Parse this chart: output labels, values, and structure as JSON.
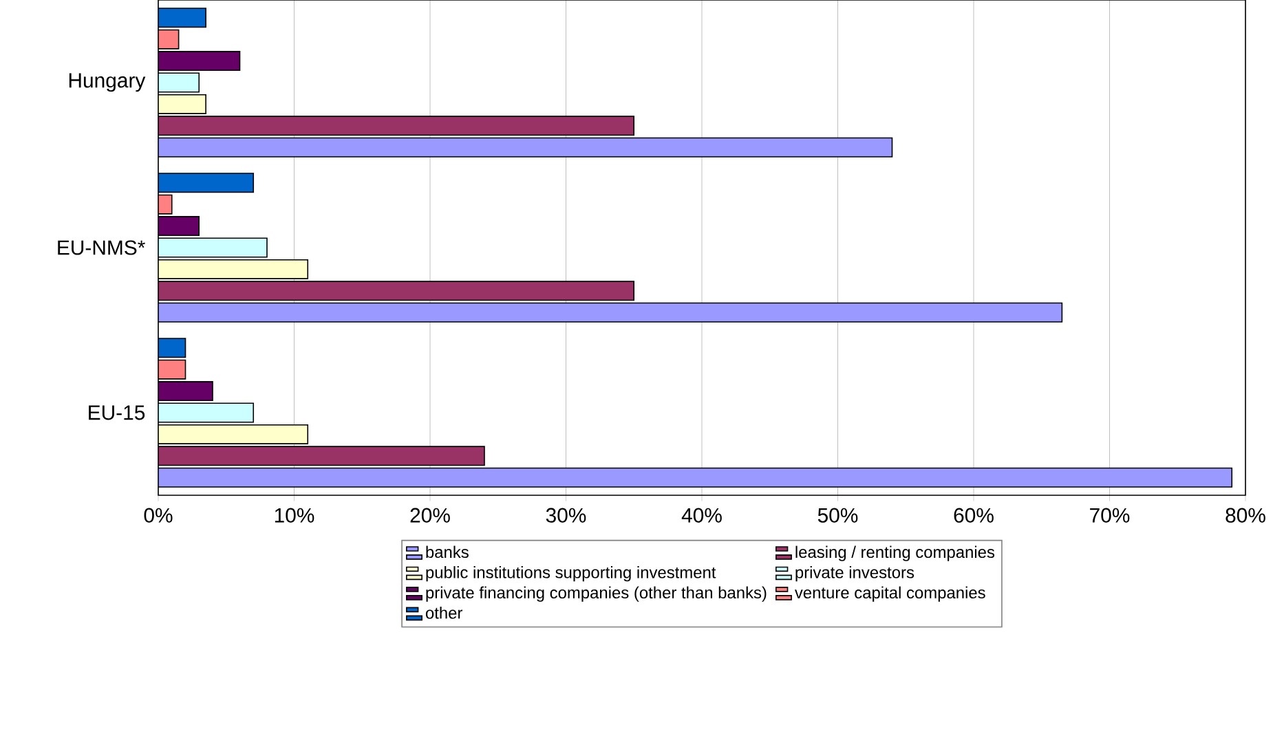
{
  "chart_data": {
    "type": "bar",
    "orientation": "horizontal",
    "categories": [
      "Hungary",
      "EU-NMS*",
      "EU-15"
    ],
    "series": [
      {
        "name": "banks",
        "color": "#9999ff",
        "values": [
          54,
          66.5,
          79
        ]
      },
      {
        "name": "leasing / renting companies",
        "color": "#993366",
        "values": [
          35,
          35,
          24
        ]
      },
      {
        "name": "public institutions supporting investment",
        "color": "#ffffcc",
        "values": [
          3.5,
          11,
          11
        ]
      },
      {
        "name": "private investors",
        "color": "#ccffff",
        "values": [
          3,
          8,
          7
        ]
      },
      {
        "name": "private financing companies (other than banks)",
        "color": "#660066",
        "values": [
          6,
          3,
          4
        ]
      },
      {
        "name": "venture capital companies",
        "color": "#ff8080",
        "values": [
          1.5,
          1,
          2
        ]
      },
      {
        "name": "other",
        "color": "#0066cc",
        "values": [
          3.5,
          7,
          2
        ]
      }
    ],
    "xlim": [
      0,
      80
    ],
    "xticks": [
      {
        "value": 0,
        "label": "0%"
      },
      {
        "value": 10,
        "label": "10%"
      },
      {
        "value": 20,
        "label": "20%"
      },
      {
        "value": 30,
        "label": "30%"
      },
      {
        "value": 40,
        "label": "40%"
      },
      {
        "value": 50,
        "label": "50%"
      },
      {
        "value": 60,
        "label": "60%"
      },
      {
        "value": 70,
        "label": "70%"
      },
      {
        "value": 80,
        "label": "80%"
      }
    ],
    "grid": "x",
    "legend": "bottom"
  }
}
